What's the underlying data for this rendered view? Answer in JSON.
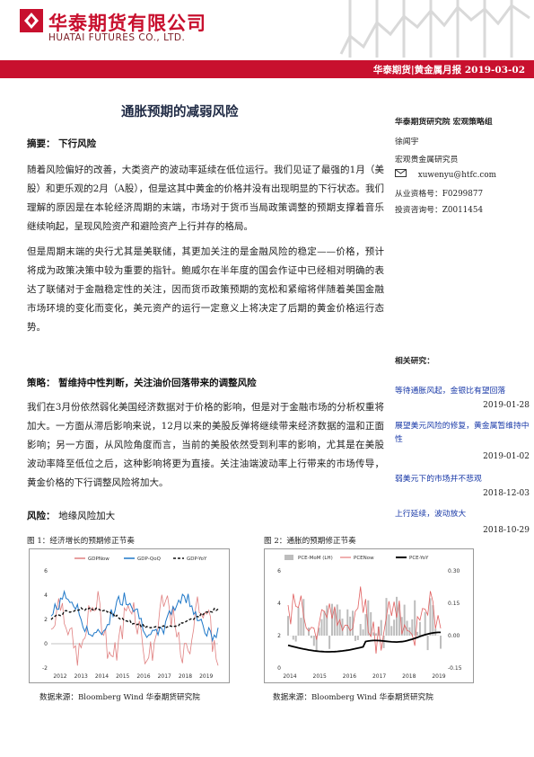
{
  "header": {
    "company_cn": "华泰期货有限公司",
    "company_en": "HUATAI FUTURES CO., LTD.",
    "report_line": "华泰期货|黄金属月报   2019-03-02"
  },
  "title": "通胀预期的减弱风险",
  "summary": {
    "heading": "摘要：",
    "heading_value": "下行风险",
    "para1": "随着风险偏好的改善，大类资产的波动率延续在低位运行。我们见证了最强的1月（美股）和更乐观的2月（A股），但是这其中黄金的价格并没有出现明显的下行状态。我们理解的原因是在本轮经济周期的末端，市场对于货币当局政策调整的预期支撑着音乐继续响起，呈现风险资产和避险资产上行并存的格局。",
    "para2": "但是周期末端的央行尤其是美联储，其更加关注的是金融风险的稳定——价格，预计将成为政策决策中较为重要的指针。鲍威尔在半年度的国会作证中已经相对明确的表达了联储对于金融稳定性的关注，因而货币政策预期的宽松和紧缩将伴随着美国金融市场环境的变化而变化，美元资产的运行一定意义上将决定了后期的黄金价格运行态势。"
  },
  "strategy": {
    "heading": "策略：",
    "heading_value": "暂维持中性判断，关注油价回落带来的调整风险",
    "para": "我们在3月份依然弱化美国经济数据对于价格的影响，但是对于金融市场的分析权重将加大。一方面从滞后影响来说，12月以来的美股反弹将继续带来经济数据的温和正面影响；另一方面，从风险角度而言，当前的美股依然受到利率的影响，尤其是在美股波动率降至低位之后，这种影响将更为直接。关注油端波动率上行带来的市场传导，黄金价格的下行调整风险将加大。"
  },
  "risk": {
    "heading": "风险：",
    "heading_value": "地缘风险加大"
  },
  "sidebar": {
    "institute": "华泰期货研究院  宏观策略组",
    "analyst": "徐闻宇",
    "role": "宏观贵金属研究员",
    "email_icon": "envelope-icon",
    "email": "xuwenyu@htfc.com",
    "license1": "从业资格号：F0299877",
    "license2": "投资咨询号：Z0011454",
    "related_heading": "相关研究：",
    "related": [
      {
        "title": "等待通胀风起，金银比有望回落",
        "date": "2019-01-28"
      },
      {
        "title": "展望美元风险的修复，黄金属暂维持中性",
        "date": "2019-01-02"
      },
      {
        "title": "弱美元下的市场并不悲观",
        "date": "2018-12-03"
      },
      {
        "title": "上行延续，波动放大",
        "date": "2018-10-29"
      }
    ]
  },
  "figures": [
    {
      "caption": "图 1：经济增长的预期修正节奏",
      "source": "数据来源：Bloomberg   Wind   华泰期货研究院"
    },
    {
      "caption": "图 2：通胀的预期修正节奏",
      "source": "数据来源：Bloomberg   Wind   华泰期货研究院"
    }
  ],
  "chart_data": [
    {
      "type": "line",
      "title": "",
      "series": [
        {
          "name": "GDPNow"
        },
        {
          "name": "GDP-QoQ"
        },
        {
          "name": "GDP-YoY"
        }
      ],
      "x": [
        "2012",
        "2013",
        "2014",
        "2015",
        "2016",
        "2017",
        "2018",
        "2019"
      ],
      "ylim": [
        -2,
        6
      ],
      "yticks": [
        "-2",
        "0",
        "2",
        "4",
        "6"
      ],
      "legend": "top"
    },
    {
      "type": "bar",
      "title": "",
      "series": [
        {
          "name": "PCE-MoM (LH)"
        },
        {
          "name": "PCENow"
        },
        {
          "name": "PCE-YoY"
        }
      ],
      "x": [
        "2014",
        "2015",
        "2016",
        "2017",
        "2018",
        "2019"
      ],
      "ylim_left": [
        0,
        6
      ],
      "yticks_left": [
        "0",
        "2",
        "4",
        "6"
      ],
      "ylim_right": [
        -0.15,
        0.3
      ],
      "yticks_right": [
        "-0.15",
        "0.00",
        "0.15",
        "0.30"
      ],
      "legend": "top"
    }
  ],
  "colors": {
    "brand_red": "#c8102e",
    "navy": "#1f2a44",
    "link_blue": "#1a3aa8"
  }
}
